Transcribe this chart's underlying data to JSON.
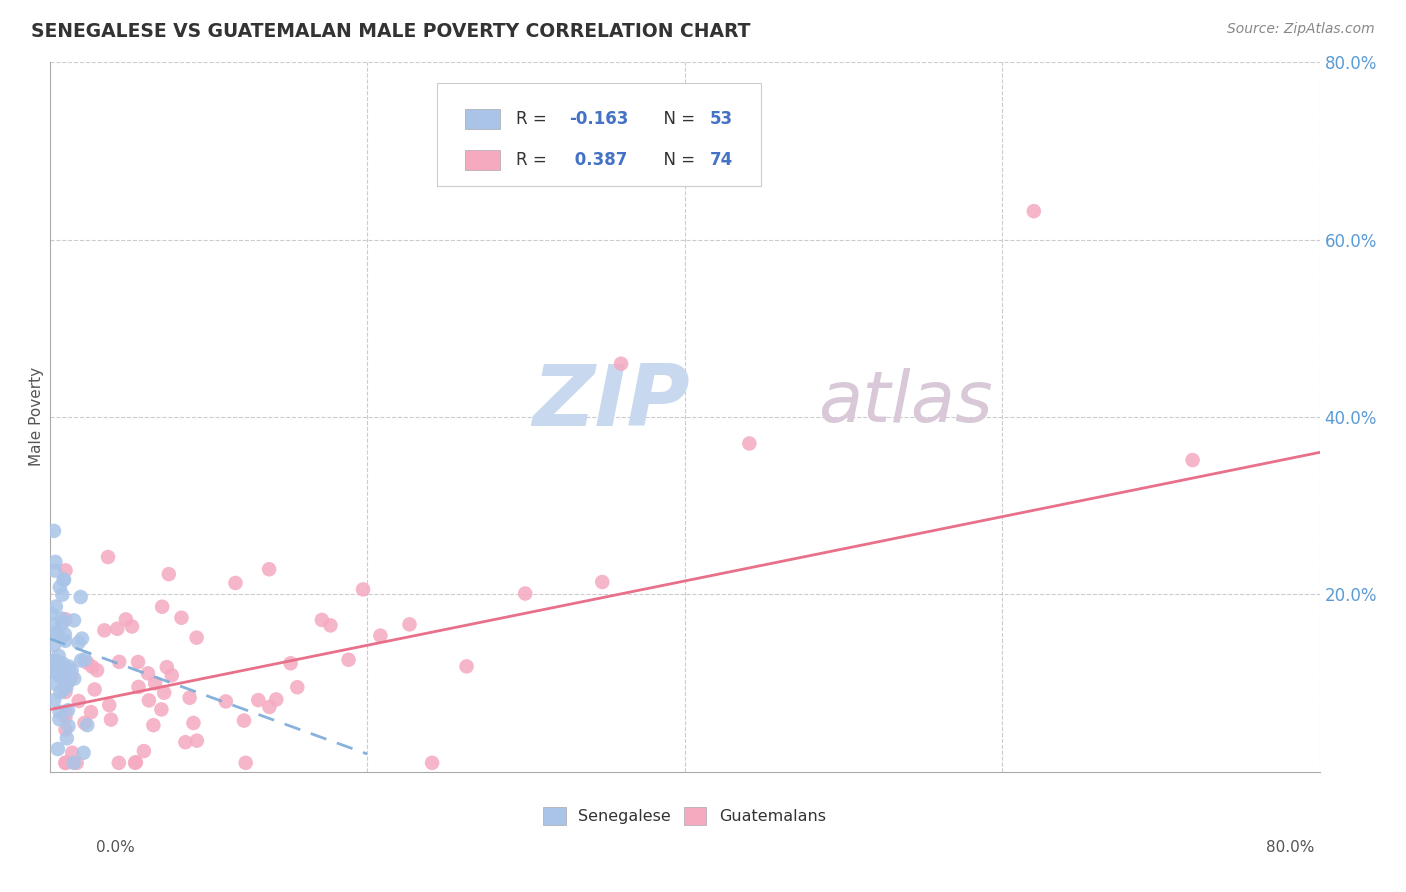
{
  "title": "SENEGALESE VS GUATEMALAN MALE POVERTY CORRELATION CHART",
  "source": "Source: ZipAtlas.com",
  "ylabel": "Male Poverty",
  "senegalese_R": -0.163,
  "senegalese_N": 53,
  "guatemalan_R": 0.387,
  "guatemalan_N": 74,
  "senegalese_color": "#aac4e8",
  "guatemalan_color": "#f5aac0",
  "senegalese_line_color": "#7aaad8",
  "senegalese_line_dash": [
    6,
    4
  ],
  "guatemalan_line_color": "#e8708a",
  "grid_color": "#cccccc",
  "axis_color": "#aaaaaa",
  "background_color": "#ffffff",
  "watermark_zip_color": "#c8d8ee",
  "watermark_atlas_color": "#d8c8d8",
  "legend_text_color": "#333333",
  "legend_value_color": "#4472c4",
  "right_tick_color": "#5b9bd5",
  "title_color": "#333333",
  "source_color": "#888888",
  "xlabel_color": "#555555",
  "ylabel_color": "#555555",
  "xlim": [
    0.0,
    0.8
  ],
  "ylim": [
    0.0,
    0.8
  ],
  "ytick_vals": [
    0.2,
    0.4,
    0.6,
    0.8
  ],
  "xtick_vals": [
    0.2,
    0.4,
    0.6,
    0.8
  ],
  "sen_regression_x0": 0.0,
  "sen_regression_x1": 0.2,
  "sen_regression_y0": 0.15,
  "sen_regression_y1": 0.02,
  "guat_regression_x0": 0.0,
  "guat_regression_x1": 0.8,
  "guat_regression_y0": 0.07,
  "guat_regression_y1": 0.36
}
